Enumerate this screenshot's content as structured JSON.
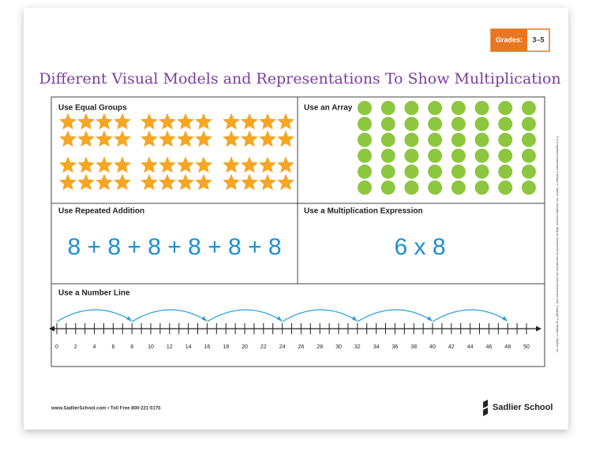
{
  "header": {
    "grades_label": "Grades:",
    "grades": "3–5",
    "title": "Different Visual Models and Representations To Show Multiplication"
  },
  "panels": {
    "equal_groups": {
      "label": "Use Equal Groups"
    },
    "array": {
      "label": "Use an Array"
    },
    "repeated_addition": {
      "label": "Use Repeated Addition",
      "expression": "8 + 8 + 8 + 8 + 8 + 8"
    },
    "multiplication_expression": {
      "label": "Use a Multiplication Expression",
      "expression": "6 x 8"
    },
    "number_line": {
      "label": "Use a Number Line",
      "labels": [
        0,
        2,
        4,
        6,
        8,
        10,
        12,
        14,
        16,
        18,
        20,
        22,
        24,
        26,
        28,
        30,
        32,
        34,
        36,
        38,
        40,
        42,
        44,
        46,
        48,
        50
      ]
    }
  },
  "footer": {
    "contact": "www.SadlierSchool.com  •  Toll Free 800-221-5175",
    "logo": "Sadlier School",
    "legal": "® is a registered trademark of William H. Sadlier, Inc. All rights reserved. May be reproduced for educational use (not commercial use). Copyright © by William H. Sadlier, Inc."
  }
}
